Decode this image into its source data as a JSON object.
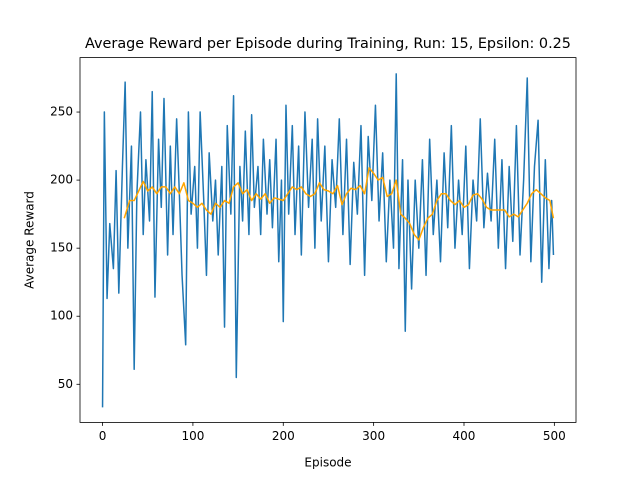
{
  "chart_data": {
    "type": "line",
    "title": "Average Reward per Episode during Training, Run: 15, Epsilon: 0.25",
    "xlabel": "Episode",
    "ylabel": "Average Reward",
    "xlim": [
      -24.95,
      523.95
    ],
    "ylim": [
      22,
      290
    ],
    "xticks": [
      0,
      100,
      200,
      300,
      400,
      500
    ],
    "yticks": [
      50,
      100,
      150,
      200,
      250
    ],
    "series": [
      {
        "color": "#1f77b4",
        "x": [
          0,
          2,
          5,
          8,
          12,
          15,
          18,
          22,
          25,
          28,
          32,
          35,
          38,
          42,
          45,
          48,
          52,
          55,
          58,
          62,
          65,
          68,
          72,
          75,
          78,
          82,
          85,
          88,
          92,
          95,
          98,
          102,
          105,
          108,
          112,
          115,
          118,
          122,
          125,
          128,
          132,
          135,
          138,
          142,
          145,
          148,
          152,
          155,
          158,
          162,
          165,
          168,
          172,
          175,
          178,
          182,
          185,
          188,
          192,
          195,
          198,
          200,
          203,
          206,
          210,
          213,
          217,
          220,
          224,
          228,
          232,
          235,
          238,
          242,
          246,
          250,
          254,
          258,
          262,
          266,
          270,
          274,
          278,
          282,
          286,
          290,
          294,
          298,
          302,
          306,
          310,
          314,
          318,
          322,
          325,
          328,
          332,
          335,
          338,
          342,
          346,
          350,
          354,
          358,
          362,
          366,
          370,
          374,
          378,
          382,
          386,
          390,
          394,
          398,
          402,
          406,
          410,
          414,
          418,
          422,
          426,
          430,
          434,
          438,
          442,
          446,
          450,
          454,
          458,
          462,
          466,
          470,
          474,
          478,
          482,
          486,
          490,
          494,
          497,
          499
        ],
        "values": [
          33,
          250,
          113,
          168,
          135,
          207,
          117,
          210,
          272,
          150,
          225,
          61,
          190,
          250,
          160,
          215,
          170,
          265,
          114,
          230,
          180,
          260,
          145,
          225,
          160,
          245,
          190,
          130,
          79,
          250,
          175,
          210,
          150,
          250,
          185,
          130,
          220,
          170,
          200,
          145,
          210,
          92,
          240,
          175,
          262,
          55,
          210,
          170,
          236,
          160,
          248,
          180,
          210,
          160,
          230,
          175,
          215,
          165,
          230,
          140,
          200,
          96,
          255,
          175,
          240,
          160,
          225,
          145,
          250,
          180,
          230,
          150,
          245,
          170,
          225,
          140,
          215,
          180,
          245,
          160,
          230,
          138,
          213,
          175,
          240,
          130,
          232,
          185,
          255,
          170,
          220,
          140,
          200,
          150,
          278,
          135,
          215,
          89,
          200,
          120,
          200,
          150,
          215,
          130,
          230,
          160,
          200,
          140,
          220,
          165,
          240,
          150,
          200,
          160,
          225,
          135,
          200,
          170,
          245,
          165,
          205,
          170,
          230,
          150,
          215,
          135,
          210,
          155,
          240,
          145,
          200,
          275,
          140,
          210,
          244,
          125,
          215,
          135,
          185,
          145
        ]
      },
      {
        "color": "#ffa500",
        "x": [
          24,
          30,
          35,
          40,
          45,
          50,
          55,
          60,
          65,
          70,
          75,
          80,
          85,
          90,
          95,
          100,
          105,
          110,
          115,
          120,
          125,
          130,
          135,
          140,
          145,
          150,
          155,
          160,
          165,
          170,
          175,
          180,
          185,
          190,
          195,
          200,
          205,
          210,
          215,
          220,
          225,
          230,
          235,
          240,
          245,
          250,
          255,
          260,
          265,
          270,
          275,
          280,
          285,
          290,
          295,
          300,
          305,
          310,
          315,
          320,
          325,
          330,
          335,
          340,
          345,
          350,
          355,
          360,
          365,
          370,
          375,
          380,
          385,
          390,
          395,
          400,
          405,
          410,
          415,
          420,
          425,
          430,
          435,
          440,
          445,
          450,
          455,
          460,
          465,
          470,
          475,
          480,
          485,
          490,
          495,
          499
        ],
        "values": [
          172,
          185,
          185,
          192,
          199,
          192,
          195,
          190,
          195,
          195,
          190,
          195,
          190,
          198,
          185,
          183,
          180,
          183,
          178,
          175,
          183,
          180,
          185,
          183,
          195,
          198,
          190,
          193,
          185,
          190,
          186,
          190,
          183,
          187,
          186,
          185,
          190,
          195,
          193,
          195,
          190,
          188,
          190,
          198,
          193,
          192,
          190,
          196,
          182,
          190,
          194,
          193,
          196,
          190,
          209,
          205,
          200,
          202,
          188,
          190,
          200,
          175,
          172,
          168,
          160,
          156,
          165,
          172,
          175,
          185,
          190,
          190,
          185,
          182,
          185,
          180,
          182,
          189,
          190,
          186,
          180,
          178,
          178,
          178,
          178,
          173,
          175,
          173,
          178,
          183,
          190,
          193,
          190,
          187,
          185,
          172
        ]
      }
    ]
  }
}
